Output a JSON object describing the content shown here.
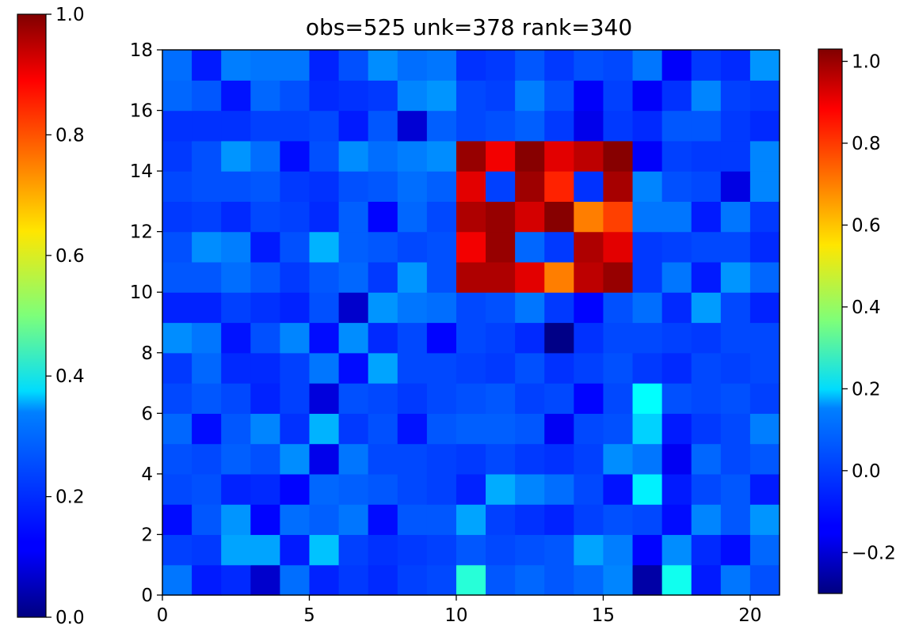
{
  "chart_data": {
    "type": "heatmap",
    "title": "obs=525 unk=378 rank=340",
    "xlabel": "",
    "ylabel": "",
    "xlim": [
      0,
      21
    ],
    "ylim": [
      0,
      18
    ],
    "x_ticks": [
      "0",
      "5",
      "10",
      "15",
      "20"
    ],
    "y_ticks": [
      "0",
      "2",
      "4",
      "6",
      "8",
      "10",
      "12",
      "14",
      "16",
      "18"
    ],
    "grid": false,
    "colormap": "jet",
    "n_cols": 21,
    "n_rows": 18,
    "rows_from_bottom": [
      [
        0.02,
        -0.1,
        -0.08,
        -0.2,
        0.01,
        -0.09,
        -0.06,
        -0.08,
        -0.05,
        -0.04,
        0.25,
        -0.02,
        0.0,
        -0.02,
        0.0,
        0.04,
        -0.25,
        0.22,
        -0.1,
        0.02,
        -0.03
      ],
      [
        -0.05,
        -0.06,
        0.08,
        0.08,
        -0.1,
        0.12,
        -0.05,
        -0.07,
        -0.06,
        -0.05,
        -0.02,
        -0.04,
        -0.03,
        -0.02,
        0.08,
        0.03,
        -0.13,
        0.05,
        -0.08,
        -0.12,
        0.0
      ],
      [
        -0.12,
        -0.02,
        0.06,
        -0.13,
        0.01,
        -0.01,
        0.02,
        -0.12,
        -0.02,
        -0.02,
        0.08,
        -0.05,
        -0.07,
        -0.09,
        -0.05,
        -0.03,
        -0.04,
        -0.12,
        0.04,
        -0.02,
        0.06
      ],
      [
        -0.04,
        -0.03,
        -0.09,
        -0.08,
        -0.13,
        0.0,
        -0.01,
        -0.02,
        -0.04,
        -0.05,
        -0.09,
        0.09,
        0.04,
        0.01,
        -0.04,
        -0.11,
        0.18,
        -0.1,
        -0.04,
        -0.02,
        -0.1
      ],
      [
        -0.03,
        -0.04,
        -0.01,
        -0.03,
        0.05,
        -0.16,
        0.02,
        -0.04,
        -0.04,
        -0.05,
        -0.06,
        -0.04,
        -0.06,
        -0.07,
        -0.05,
        0.05,
        0.02,
        -0.15,
        0.0,
        -0.04,
        -0.02
      ],
      [
        0.0,
        -0.12,
        -0.02,
        0.04,
        -0.07,
        0.1,
        -0.06,
        -0.03,
        -0.11,
        -0.02,
        -0.01,
        -0.01,
        -0.02,
        -0.15,
        -0.04,
        -0.03,
        0.14,
        -0.1,
        -0.06,
        -0.04,
        0.03
      ],
      [
        -0.04,
        -0.02,
        -0.04,
        -0.09,
        -0.05,
        -0.18,
        -0.03,
        -0.04,
        -0.06,
        -0.04,
        -0.03,
        -0.02,
        -0.05,
        -0.04,
        -0.13,
        -0.04,
        0.2,
        -0.03,
        -0.04,
        -0.03,
        -0.05
      ],
      [
        -0.06,
        0.0,
        -0.08,
        -0.08,
        -0.05,
        0.02,
        -0.12,
        0.08,
        -0.04,
        -0.04,
        -0.05,
        -0.06,
        -0.03,
        -0.07,
        -0.05,
        -0.03,
        -0.06,
        -0.08,
        -0.04,
        -0.05,
        -0.04
      ],
      [
        0.05,
        0.02,
        -0.11,
        -0.03,
        0.04,
        -0.12,
        0.05,
        -0.08,
        -0.04,
        -0.13,
        -0.04,
        -0.05,
        -0.08,
        -0.29,
        -0.07,
        -0.04,
        -0.04,
        -0.05,
        -0.06,
        -0.04,
        -0.04
      ],
      [
        -0.09,
        -0.09,
        -0.05,
        -0.07,
        -0.09,
        -0.03,
        -0.2,
        0.06,
        0.02,
        0.01,
        -0.04,
        -0.03,
        0.02,
        -0.06,
        -0.13,
        -0.03,
        0.01,
        -0.08,
        0.07,
        -0.04,
        -0.09
      ],
      [
        -0.02,
        -0.02,
        0.01,
        -0.02,
        -0.06,
        -0.02,
        0.0,
        -0.06,
        0.06,
        -0.03,
        0.97,
        0.97,
        0.9,
        0.7,
        0.95,
        1.0,
        -0.06,
        0.02,
        -0.1,
        0.06,
        0.0
      ],
      [
        -0.03,
        0.05,
        0.03,
        -0.1,
        -0.03,
        0.1,
        -0.01,
        -0.02,
        -0.04,
        -0.03,
        0.88,
        1.0,
        0.0,
        -0.06,
        0.97,
        0.9,
        -0.06,
        -0.05,
        -0.04,
        -0.04,
        -0.08
      ],
      [
        -0.06,
        -0.05,
        -0.08,
        -0.04,
        -0.05,
        -0.08,
        -0.01,
        -0.13,
        0.0,
        -0.04,
        0.97,
        1.0,
        0.92,
        1.02,
        0.7,
        0.78,
        0.02,
        0.02,
        -0.1,
        0.02,
        -0.06
      ],
      [
        -0.04,
        -0.03,
        -0.03,
        -0.02,
        -0.06,
        -0.07,
        -0.03,
        -0.02,
        0.01,
        -0.01,
        0.9,
        -0.05,
        0.99,
        0.82,
        -0.07,
        0.98,
        0.04,
        -0.03,
        -0.04,
        -0.17,
        0.04
      ],
      [
        -0.06,
        -0.03,
        0.06,
        0.01,
        -0.12,
        -0.03,
        0.05,
        0.01,
        0.03,
        0.05,
        1.0,
        0.88,
        1.02,
        0.9,
        0.95,
        1.02,
        -0.14,
        -0.05,
        -0.06,
        -0.06,
        0.04
      ],
      [
        -0.07,
        -0.07,
        -0.07,
        -0.05,
        -0.05,
        -0.04,
        -0.1,
        -0.02,
        -0.19,
        -0.01,
        -0.04,
        -0.03,
        -0.01,
        -0.06,
        -0.16,
        -0.06,
        -0.08,
        -0.02,
        -0.02,
        -0.06,
        -0.08
      ],
      [
        0.0,
        -0.02,
        -0.11,
        0.0,
        -0.03,
        -0.08,
        -0.07,
        -0.06,
        0.04,
        0.06,
        -0.04,
        -0.05,
        0.03,
        -0.03,
        -0.14,
        -0.05,
        -0.14,
        -0.07,
        0.04,
        -0.05,
        -0.06
      ],
      [
        0.01,
        -0.1,
        0.03,
        0.02,
        0.02,
        -0.09,
        -0.03,
        0.05,
        0.01,
        0.02,
        -0.07,
        -0.06,
        -0.02,
        -0.06,
        -0.03,
        -0.04,
        0.02,
        -0.14,
        -0.06,
        -0.08,
        0.06
      ]
    ],
    "colorbars": [
      {
        "placement": "left",
        "range": [
          0.0,
          1.0
        ],
        "ticks": [
          "0.0",
          "0.2",
          "0.4",
          "0.6",
          "0.8",
          "1.0"
        ]
      },
      {
        "placement": "right",
        "range": [
          -0.3,
          1.03
        ],
        "ticks": [
          "−0.2",
          "0.0",
          "0.2",
          "0.4",
          "0.6",
          "0.8",
          "1.0"
        ]
      }
    ]
  }
}
